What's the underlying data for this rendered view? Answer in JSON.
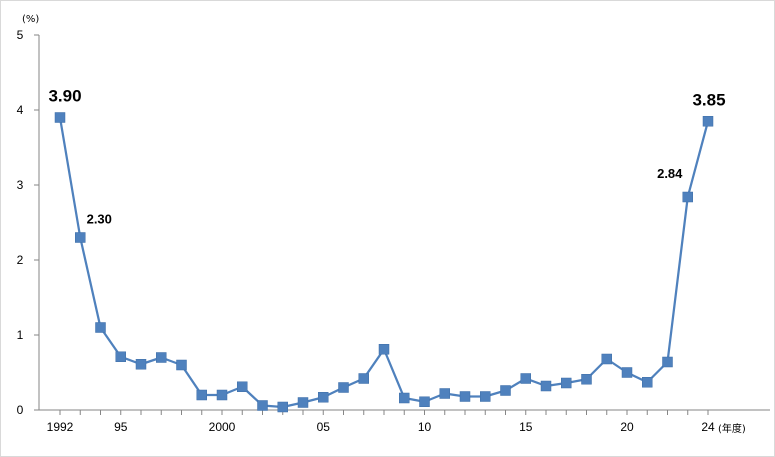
{
  "chart_data": {
    "type": "line",
    "title": "",
    "ylabel": "",
    "xlabel": "",
    "y_unit": "(%)",
    "x_unit": "(年度)",
    "ylim": [
      0,
      5
    ],
    "y_ticks": [
      "0",
      "1",
      "2",
      "3",
      "4",
      "5"
    ],
    "x_tick_labels": [
      {
        "year": 1992,
        "label": "1992"
      },
      {
        "year": 1995,
        "label": "95"
      },
      {
        "year": 2000,
        "label": "2000"
      },
      {
        "year": 2005,
        "label": "05"
      },
      {
        "year": 2010,
        "label": "10"
      },
      {
        "year": 2015,
        "label": "15"
      },
      {
        "year": 2020,
        "label": "20"
      },
      {
        "year": 2024,
        "label": "24"
      }
    ],
    "grid": false,
    "series_color": "#4f81bd",
    "series": [
      {
        "x": [
          1992,
          1993,
          1994,
          1995,
          1996,
          1997,
          1998,
          1999,
          2000,
          2001,
          2002,
          2003,
          2004,
          2005,
          2006,
          2007,
          2008,
          2009,
          2010,
          2011,
          2012,
          2013,
          2014,
          2015,
          2016,
          2017,
          2018,
          2019,
          2020,
          2021,
          2022,
          2023,
          2024
        ],
        "values": [
          3.9,
          2.3,
          1.1,
          0.71,
          0.61,
          0.7,
          0.6,
          0.2,
          0.2,
          0.31,
          0.06,
          0.04,
          0.1,
          0.17,
          0.3,
          0.42,
          0.81,
          0.16,
          0.11,
          0.22,
          0.18,
          0.18,
          0.26,
          0.42,
          0.32,
          0.36,
          0.41,
          0.68,
          0.5,
          0.37,
          0.64,
          2.84,
          3.85
        ]
      }
    ],
    "data_labels": [
      {
        "year": 1992,
        "text": "3.90",
        "size": "large"
      },
      {
        "year": 1993,
        "text": "2.30",
        "size": "small"
      },
      {
        "year": 2023,
        "text": "2.84",
        "size": "small"
      },
      {
        "year": 2024,
        "text": "3.85",
        "size": "large"
      }
    ]
  }
}
